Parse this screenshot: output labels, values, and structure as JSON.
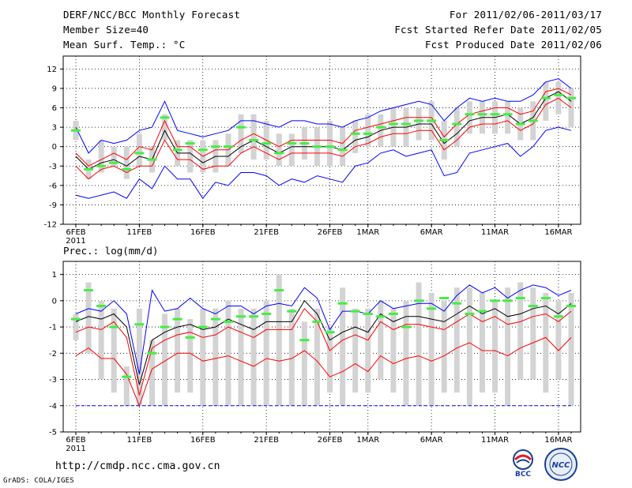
{
  "header": {
    "line1": "DERF/NCC/BCC Monthly Forecast",
    "line2": "Member Size=40",
    "line3": "Mean Surf. Temp.: °C",
    "right1": "For 2011/02/06-2011/03/17",
    "right2": "Fcst Started Refer Date 2011/02/05",
    "right3": "Fcst Produced Date 2011/02/06"
  },
  "footer": {
    "url": "http://cmdp.ncc.cma.gov.cn",
    "grads": "GrADS: COLA/IGES",
    "bcc_label": "BCC",
    "ncc_label": "NCC"
  },
  "chart_data": [
    {
      "type": "box-ensemble",
      "title": "Mean Surf. Temp.: °C",
      "ylabel": "°C",
      "ylim": [
        -12,
        14
      ],
      "yticks": [
        -12,
        -9,
        -6,
        -3,
        0,
        3,
        6,
        9,
        12
      ],
      "categories_count": 40,
      "xtick_labels": [
        {
          "day": 1,
          "label": "6FEB",
          "sub": "2011"
        },
        {
          "day": 6,
          "label": "11FEB"
        },
        {
          "day": 11,
          "label": "16FEB"
        },
        {
          "day": 16,
          "label": "21FEB"
        },
        {
          "day": 21,
          "label": "26FEB"
        },
        {
          "day": 24,
          "label": "1MAR"
        },
        {
          "day": 29,
          "label": "6MAR"
        },
        {
          "day": 34,
          "label": "11MAR"
        },
        {
          "day": 39,
          "label": "16MAR"
        }
      ],
      "series": [
        {
          "name": "ensemble mean",
          "color": "#000000",
          "values": [
            -1.5,
            -3.5,
            -2.5,
            -2,
            -3,
            -1.5,
            -2,
            2.5,
            -1,
            -1,
            -2.5,
            -1.5,
            -1.5,
            0,
            1,
            0,
            -1,
            0,
            0,
            0,
            0,
            -0.5,
            1,
            1.5,
            2.5,
            3,
            3,
            3.5,
            3.5,
            0.5,
            2,
            4,
            4.5,
            4.5,
            5,
            3.5,
            4.5,
            7.5,
            8.5,
            7
          ]
        },
        {
          "name": "mean + std",
          "color": "#ff0000",
          "values": [
            -1,
            -3,
            -2,
            -1,
            -2,
            0,
            -0.5,
            4,
            0,
            0,
            -1.5,
            -0.5,
            -0.5,
            1,
            2,
            1,
            0,
            1,
            1,
            1,
            1,
            0.5,
            2.5,
            3,
            3.5,
            4,
            4.5,
            4.5,
            4.5,
            1.5,
            3.5,
            5,
            5.5,
            6,
            6,
            5,
            5.5,
            8.5,
            9,
            8
          ]
        },
        {
          "name": "mean - std",
          "color": "#ff0000",
          "values": [
            -3,
            -5,
            -3.5,
            -3,
            -4,
            -3,
            -3,
            1,
            -2,
            -2,
            -3.5,
            -3,
            -3,
            -1,
            0,
            -1,
            -2,
            -1,
            -1,
            -1,
            -1,
            -1.5,
            0,
            0.5,
            1.5,
            2,
            2,
            2.5,
            2.5,
            -0.5,
            1,
            3,
            3.5,
            3.5,
            4,
            2.5,
            3.5,
            6.5,
            7.5,
            6
          ]
        },
        {
          "name": "ensemble max",
          "color": "#0000ff",
          "values": [
            3,
            -1,
            1,
            0.5,
            1,
            2.5,
            3,
            7,
            2.5,
            2,
            1.5,
            2,
            2.5,
            4,
            4,
            3.5,
            3,
            4,
            4,
            3.5,
            3.5,
            3,
            4,
            4.5,
            5.5,
            6,
            6.5,
            7,
            6.5,
            4,
            6,
            7.5,
            7,
            7.5,
            7,
            7,
            8,
            10,
            10.5,
            9
          ]
        },
        {
          "name": "ensemble min",
          "color": "#0000ff",
          "values": [
            -7.5,
            -8,
            -7.5,
            -7,
            -8,
            -5,
            -6.5,
            -3,
            -5,
            -5,
            -8,
            -5.5,
            -6,
            -4,
            -4,
            -4.5,
            -6,
            -5,
            -5.5,
            -4.5,
            -5,
            -5.5,
            -3,
            -2.5,
            -1,
            -0.5,
            -1.5,
            -1,
            -0.5,
            -4.5,
            -4,
            -1,
            -0.5,
            0,
            0.5,
            -1.5,
            0,
            2.5,
            3,
            2.5
          ]
        },
        {
          "name": "observed / reference",
          "color": "#44ee44",
          "values": [
            2.5,
            -3.5,
            -3,
            -2.5,
            -3.5,
            -1,
            -2,
            4.5,
            -0.5,
            0.5,
            -0.5,
            0,
            0,
            3,
            1,
            0.5,
            -1,
            0.5,
            0.5,
            0,
            0,
            -0.5,
            2,
            2,
            3,
            3.5,
            3.5,
            4,
            4,
            1,
            3.5,
            5,
            5,
            5,
            5,
            3.5,
            4,
            7.5,
            8,
            7.5
          ]
        }
      ],
      "box_ranges": [
        [
          1,
          4
        ],
        [
          -5,
          -2
        ],
        [
          -4,
          1
        ],
        [
          -3,
          0
        ],
        [
          -5,
          0
        ],
        [
          -3,
          2
        ],
        [
          -4,
          0
        ],
        [
          1,
          5
        ],
        [
          -3,
          1
        ],
        [
          -4,
          1
        ],
        [
          -4,
          1
        ],
        [
          -4,
          1
        ],
        [
          -3,
          2
        ],
        [
          -1,
          5
        ],
        [
          -2,
          5
        ],
        [
          -2,
          4
        ],
        [
          -3,
          2
        ],
        [
          -3,
          2
        ],
        [
          -2,
          3
        ],
        [
          -3,
          3
        ],
        [
          -3,
          4
        ],
        [
          -3,
          3
        ],
        [
          -1,
          4
        ],
        [
          0,
          5
        ],
        [
          0,
          5
        ],
        [
          0,
          6
        ],
        [
          0,
          6
        ],
        [
          1,
          6
        ],
        [
          1,
          7
        ],
        [
          -2,
          4
        ],
        [
          0,
          6
        ],
        [
          2,
          7
        ],
        [
          2,
          7
        ],
        [
          2,
          7
        ],
        [
          2,
          7
        ],
        [
          1,
          6
        ],
        [
          1,
          7
        ],
        [
          4,
          10
        ],
        [
          5,
          10
        ],
        [
          3,
          9
        ]
      ]
    },
    {
      "type": "box-ensemble",
      "title": "Prec.: log(mm/d)",
      "ylabel": "log(mm/d)",
      "ylim": [
        -5,
        1.5
      ],
      "yticks": [
        -5,
        -4,
        -3,
        -2,
        -1,
        0,
        1
      ],
      "categories_count": 40,
      "xtick_labels": [
        {
          "day": 1,
          "label": "6FEB",
          "sub": "2011"
        },
        {
          "day": 6,
          "label": "11FEB"
        },
        {
          "day": 11,
          "label": "16FEB"
        },
        {
          "day": 16,
          "label": "21FEB"
        },
        {
          "day": 21,
          "label": "26FEB"
        },
        {
          "day": 24,
          "label": "1MAR"
        },
        {
          "day": 29,
          "label": "6MAR"
        },
        {
          "day": 34,
          "label": "11MAR"
        },
        {
          "day": 39,
          "label": "16MAR"
        }
      ],
      "series": [
        {
          "name": "ensemble mean",
          "color": "#000000",
          "values": [
            -0.8,
            -0.6,
            -0.7,
            -0.5,
            -1,
            -3.2,
            -1.5,
            -1.2,
            -1,
            -0.9,
            -1.1,
            -1,
            -0.7,
            -0.9,
            -1.1,
            -0.8,
            -0.8,
            -0.8,
            0,
            -0.5,
            -1.5,
            -1.2,
            -1,
            -1.2,
            -0.5,
            -0.8,
            -0.6,
            -0.6,
            -0.7,
            -0.8,
            -0.5,
            -0.2,
            -0.5,
            -0.3,
            -0.6,
            -0.5,
            -0.3,
            -0.2,
            -0.5,
            -0.1
          ]
        },
        {
          "name": "mean + std",
          "color": "#ff0000",
          "values": [
            -1.2,
            -1,
            -1.1,
            -0.8,
            -1.4,
            -3.6,
            -1.8,
            -1.5,
            -1.3,
            -1.2,
            -1.4,
            -1.3,
            -1,
            -1.2,
            -1.4,
            -1.1,
            -1.1,
            -1.1,
            -0.3,
            -0.8,
            -1.9,
            -1.5,
            -1.3,
            -1.5,
            -0.8,
            -1.1,
            -0.9,
            -0.9,
            -1,
            -1.1,
            -0.8,
            -0.5,
            -0.8,
            -0.6,
            -0.9,
            -0.8,
            -0.6,
            -0.5,
            -0.8,
            -0.4
          ]
        },
        {
          "name": "mean - std",
          "color": "#ff0000",
          "values": [
            -2.1,
            -1.8,
            -2.2,
            -2.2,
            -2.8,
            -4,
            -2.6,
            -2.3,
            -2,
            -2,
            -2.3,
            -2.2,
            -2.1,
            -2.3,
            -2.5,
            -2.2,
            -2.3,
            -2.2,
            -1.9,
            -2.3,
            -2.9,
            -2.7,
            -2.4,
            -2.7,
            -2.1,
            -2.4,
            -2.2,
            -2.1,
            -2.3,
            -2.1,
            -1.8,
            -1.6,
            -1.9,
            -1.9,
            -2.1,
            -1.8,
            -1.6,
            -1.4,
            -1.9,
            -1.4
          ]
        },
        {
          "name": "ensemble max",
          "color": "#0000ff",
          "values": [
            -0.5,
            -0.3,
            -0.4,
            0,
            -0.5,
            -2.8,
            0.4,
            -0.4,
            -0.3,
            0.1,
            -0.3,
            -0.5,
            -0.2,
            -0.2,
            -0.5,
            -0.2,
            -0.1,
            -0.2,
            0.5,
            0.1,
            -1.1,
            -0.4,
            -0.4,
            -0.5,
            0,
            -0.3,
            -0.2,
            -0.1,
            -0.1,
            -0.4,
            0.2,
            0.6,
            0.3,
            0.5,
            0.1,
            0.4,
            0.6,
            0.5,
            0.2,
            0.4
          ]
        },
        {
          "name": "ensemble min",
          "color": "#0000ff",
          "values": [
            -4,
            -4,
            -4,
            -4,
            -4,
            -4,
            -4,
            -4,
            -4,
            -4,
            -4,
            -4,
            -4,
            -4,
            -4,
            -4,
            -4,
            -4,
            -4,
            -4,
            -4,
            -4,
            -4,
            -4,
            -4,
            -4,
            -4,
            -4,
            -4,
            -4,
            -4,
            -4,
            -4,
            -4,
            -4,
            -4,
            -4,
            -4,
            -4,
            -4
          ]
        },
        {
          "name": "observed / reference",
          "color": "#44ee44",
          "values": [
            -0.7,
            0.4,
            -0.2,
            -1,
            -2.9,
            -0.9,
            -2,
            -1,
            -0.7,
            -1.4,
            -1,
            -0.7,
            -0.8,
            -0.6,
            -0.6,
            -0.5,
            0.4,
            -0.4,
            -1.5,
            -0.8,
            -1.2,
            -0.1,
            -0.4,
            -0.5,
            -0.6,
            -0.5,
            -1,
            0,
            -0.3,
            0.1,
            -0.1,
            -0.5,
            -0.4,
            0,
            0,
            0.1,
            -0.2,
            0.1,
            -0.6,
            -0.2
          ]
        }
      ],
      "box_ranges": [
        [
          -1.5,
          -0.5
        ],
        [
          -2,
          0.7
        ],
        [
          -3,
          0
        ],
        [
          -3.5,
          -0.3
        ],
        [
          -4,
          -2.5
        ],
        [
          -4,
          -0.3
        ],
        [
          -4,
          -1.5
        ],
        [
          -4,
          -0.5
        ],
        [
          -3.5,
          -0.3
        ],
        [
          -3.5,
          -0.7
        ],
        [
          -4,
          -0.3
        ],
        [
          -4,
          -0.3
        ],
        [
          -4,
          0
        ],
        [
          -4,
          -0.3
        ],
        [
          -4,
          -0.3
        ],
        [
          -4,
          0
        ],
        [
          -4,
          1
        ],
        [
          -4,
          -0.3
        ],
        [
          -4,
          -0.8
        ],
        [
          -4,
          -0.3
        ],
        [
          -3.5,
          -1
        ],
        [
          -4,
          0.5
        ],
        [
          -3.5,
          -0.3
        ],
        [
          -3.5,
          -0.3
        ],
        [
          -3,
          0
        ],
        [
          -3.5,
          -0.3
        ],
        [
          -4,
          0
        ],
        [
          -4,
          0.7
        ],
        [
          -4,
          0.3
        ],
        [
          -3.5,
          0
        ],
        [
          -3.5,
          0.5
        ],
        [
          -4,
          0.5
        ],
        [
          -3.5,
          0.3
        ],
        [
          -3.5,
          0
        ],
        [
          -4,
          0.5
        ],
        [
          -3,
          0.7
        ],
        [
          -3,
          0.5
        ],
        [
          -3.5,
          0.3
        ],
        [
          -3,
          0
        ],
        [
          -4,
          0.3
        ]
      ]
    }
  ]
}
